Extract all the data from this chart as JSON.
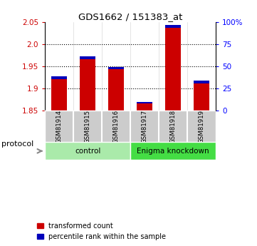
{
  "title": "GDS1662 / 151383_at",
  "samples": [
    "GSM81914",
    "GSM81915",
    "GSM81916",
    "GSM81917",
    "GSM81918",
    "GSM81919"
  ],
  "red_values": [
    1.921,
    1.967,
    1.943,
    1.866,
    2.037,
    1.912
  ],
  "blue_pct": [
    3,
    3,
    3,
    1.5,
    3,
    3
  ],
  "y_min": 1.85,
  "y_max": 2.05,
  "y_ticks_red": [
    1.85,
    1.9,
    1.95,
    2.0,
    2.05
  ],
  "y_ticks_blue": [
    0,
    25,
    50,
    75,
    100
  ],
  "groups": [
    {
      "label": "control",
      "start": 0,
      "end": 3,
      "color": "#AAEAAA"
    },
    {
      "label": "Enigma knockdown",
      "start": 3,
      "end": 6,
      "color": "#44DD44"
    }
  ],
  "protocol_label": "protocol",
  "red_color": "#CC0000",
  "blue_color": "#0000BB",
  "bg_color": "#FFFFFF",
  "sample_bg": "#CCCCCC",
  "legend_red": "transformed count",
  "legend_blue": "percentile rank within the sample"
}
